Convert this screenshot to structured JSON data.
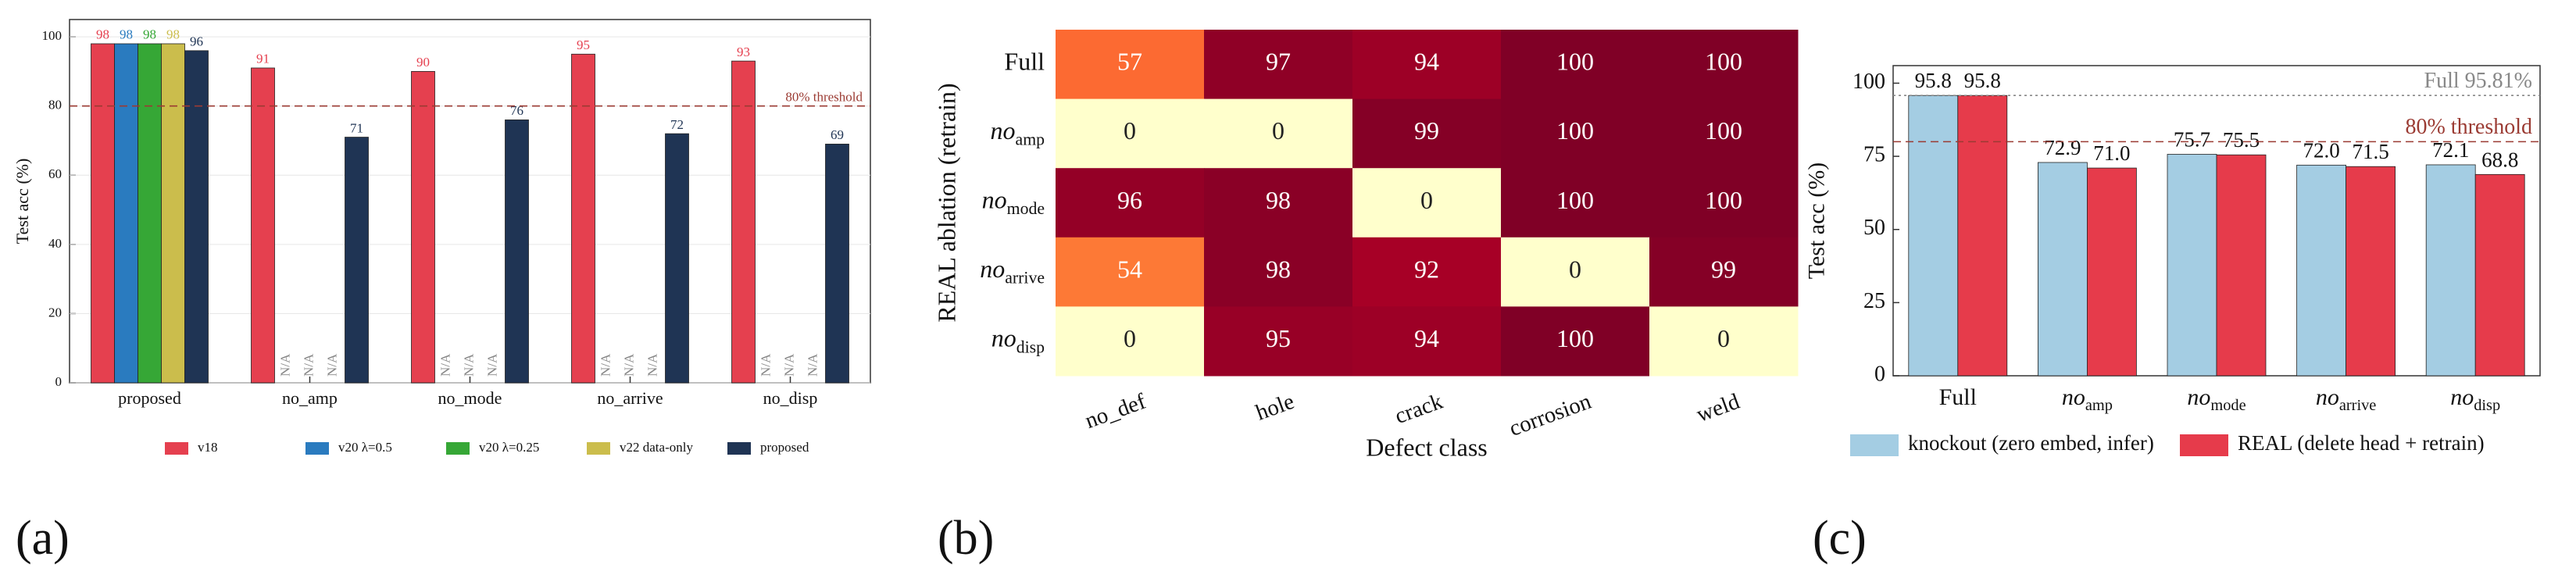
{
  "chart_data": [
    {
      "type": "bar",
      "panel_label": "(a)",
      "ylabel": "Test acc (%)",
      "categories": [
        "proposed",
        "no_amp",
        "no_mode",
        "no_arrive",
        "no_disp"
      ],
      "series": [
        {
          "name": "v18",
          "color": "#e5404f",
          "values": [
            98,
            91,
            90,
            95,
            93
          ]
        },
        {
          "name": "v20 λ=0.5",
          "color": "#2a7bbf",
          "values": [
            98,
            null,
            null,
            null,
            null
          ],
          "value_labels": [
            "98",
            "N/A",
            "N/A",
            "N/A",
            "N/A"
          ]
        },
        {
          "name": "v20 λ=0.25",
          "color": "#36a736",
          "values": [
            98,
            null,
            null,
            null,
            null
          ],
          "value_labels": [
            "98",
            "N/A",
            "N/A",
            "N/A",
            "N/A"
          ]
        },
        {
          "name": "v22 data-only",
          "color": "#cbbd4c",
          "values": [
            98,
            null,
            null,
            null,
            null
          ],
          "value_labels": [
            "98",
            "N/A",
            "N/A",
            "N/A",
            "N/A"
          ]
        },
        {
          "name": "proposed",
          "color": "#1f3454",
          "values": [
            96,
            71,
            76,
            72,
            69
          ]
        }
      ],
      "ylim": [
        0,
        105
      ],
      "yticks": [
        0,
        20,
        40,
        60,
        80,
        100
      ],
      "grid": true,
      "legend": "bottom",
      "value_label_color": "series",
      "reference_lines": [
        {
          "value": 80,
          "label": "80% threshold",
          "color": "#9b3b33",
          "style": "dashed"
        }
      ]
    },
    {
      "type": "heatmap",
      "panel_label": "(b)",
      "xlabel": "Defect class",
      "ylabel": "REAL ablation (retrain)",
      "columns": [
        "no_def",
        "hole",
        "crack",
        "corrosion",
        "weld"
      ],
      "rows": [
        {
          "text": "Full"
        },
        {
          "text": "no",
          "sub": "amp"
        },
        {
          "text": "no",
          "sub": "mode"
        },
        {
          "text": "no",
          "sub": "arrive"
        },
        {
          "text": "no",
          "sub": "disp"
        }
      ],
      "values": [
        [
          57,
          97,
          94,
          100,
          100
        ],
        [
          0,
          0,
          99,
          100,
          100
        ],
        [
          96,
          98,
          0,
          100,
          100
        ],
        [
          54,
          98,
          92,
          0,
          99
        ],
        [
          0,
          95,
          94,
          100,
          0
        ]
      ],
      "colormap": "YlOrRd",
      "clim": [
        0,
        100
      ]
    },
    {
      "type": "bar",
      "panel_label": "(c)",
      "ylabel": "Test acc (%)",
      "categories": [
        {
          "text": "Full"
        },
        {
          "text": "no",
          "sub": "amp"
        },
        {
          "text": "no",
          "sub": "mode"
        },
        {
          "text": "no",
          "sub": "arrive"
        },
        {
          "text": "no",
          "sub": "disp"
        }
      ],
      "series": [
        {
          "name": "knockout (zero embed, infer)",
          "color": "#a4cde3",
          "values": [
            95.8,
            72.9,
            75.7,
            72.0,
            72.1
          ],
          "value_labels": [
            "95.8",
            "72.9",
            "75.7",
            "72.0",
            "72.1"
          ]
        },
        {
          "name": "REAL (delete head + retrain)",
          "color": "#e63b4b",
          "values": [
            95.8,
            71.0,
            75.5,
            71.5,
            68.8
          ],
          "value_labels": [
            "95.8",
            "71.0",
            "75.5",
            "71.5",
            "68.8"
          ]
        }
      ],
      "ylim": [
        0,
        106
      ],
      "yticks": [
        0,
        25,
        50,
        75,
        100
      ],
      "grid": false,
      "legend": "bottom",
      "value_label_color": "black",
      "reference_lines": [
        {
          "value": 95.81,
          "label": "Full 95.81%",
          "color": "#888888",
          "style": "dotted"
        },
        {
          "value": 80,
          "label": "80% threshold",
          "color": "#9b3b33",
          "style": "dashed"
        }
      ]
    }
  ]
}
